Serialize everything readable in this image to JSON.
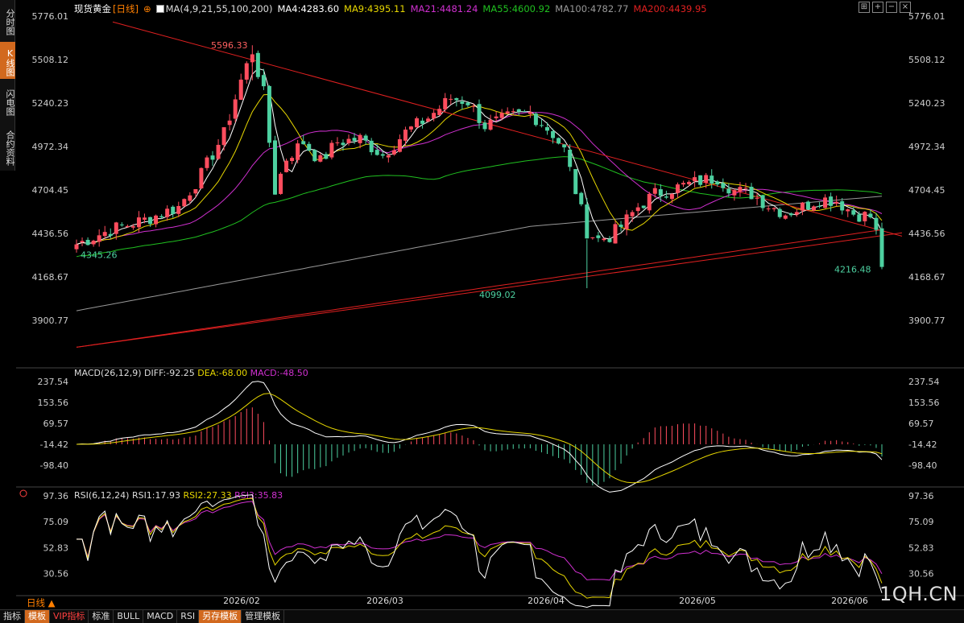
{
  "nav": {
    "tabs": [
      {
        "label": "分时图",
        "active": false
      },
      {
        "label": "K线图",
        "active": true
      },
      {
        "label": "闪电图",
        "active": false
      },
      {
        "label": "合约资料",
        "active": false
      }
    ]
  },
  "header": {
    "instrument": "现货黄金",
    "period_tag": "[日线]",
    "plus": "⊕",
    "ma_label": "MA(4,9,21,55,100,200)",
    "ma4": "MA4:4283.60",
    "ma9": "MA9:4395.11",
    "ma21": "MA21:4481.24",
    "ma55": "MA55:4600.92",
    "ma100": "MA100:4782.77",
    "ma200": "MA200:4439.95"
  },
  "tools": [
    "fit-icon",
    "zoom-in-icon",
    "zoom-out-icon",
    "close-icon"
  ],
  "colors": {
    "up": "#ff4d5e",
    "down": "#4dd0a0",
    "ma4": "#ffffff",
    "ma9": "#e6d600",
    "ma21": "#d030d0",
    "ma55": "#20c020",
    "ma100": "#999999",
    "ma200": "#e02020",
    "dif": "#ffffff",
    "dea": "#e6d600",
    "rsi1": "#ffffff",
    "rsi2": "#e6d600",
    "rsi3": "#d030d0"
  },
  "chart_data": [
    {
      "type": "candlestick",
      "y_ticks": [
        "5776.01",
        "5508.12",
        "5240.23",
        "4972.34",
        "4704.45",
        "4436.56",
        "4168.67",
        "3900.77"
      ],
      "ylim": [
        3900.77,
        5776.01
      ],
      "x_ticks": [
        "2026/02",
        "2026/03",
        "2026/04",
        "2026/05",
        "2026/06"
      ],
      "annotations": [
        "5596.33",
        "4345.26",
        "4099.02",
        "4216.48"
      ],
      "high": 5596.33,
      "low": 4099.02,
      "first_low": 4345.26,
      "last_low": 4216.48
    },
    {
      "type": "line",
      "title": "MACD(26,12,9)",
      "series": [
        {
          "name": "DIFF",
          "value": "DIFF:-92.25"
        },
        {
          "name": "DEA",
          "value": "DEA:-68.00"
        },
        {
          "name": "MACD",
          "value": "MACD:-48.50"
        }
      ],
      "y_ticks": [
        "237.54",
        "153.56",
        "69.57",
        "-14.42",
        "-98.40"
      ],
      "ylim": [
        -98.4,
        237.54
      ]
    },
    {
      "type": "line",
      "title": "RSI(6,12,24)",
      "series": [
        {
          "name": "RSI1",
          "value": "RSI1:17.93"
        },
        {
          "name": "RSI2",
          "value": "RSI2:27.33"
        },
        {
          "name": "RSI3",
          "value": "RSI3:35.83"
        }
      ],
      "y_ticks": [
        "97.36",
        "75.09",
        "52.83",
        "30.56"
      ],
      "ylim": [
        30.56,
        97.36
      ]
    }
  ],
  "footer": {
    "period": "日线 ▲",
    "tabs": [
      {
        "label": "指标",
        "hl": false
      },
      {
        "label": "模板",
        "hl": true
      },
      {
        "label": "VIP指标",
        "hl": false,
        "red": true
      },
      {
        "label": "标准",
        "hl": false
      },
      {
        "label": "BULL",
        "hl": false
      },
      {
        "label": "MACD",
        "hl": false
      },
      {
        "label": "RSI",
        "hl": false
      },
      {
        "label": "另存模板",
        "hl": true
      },
      {
        "label": "管理模板",
        "hl": false
      }
    ],
    "watermark": "1QH.CN"
  }
}
